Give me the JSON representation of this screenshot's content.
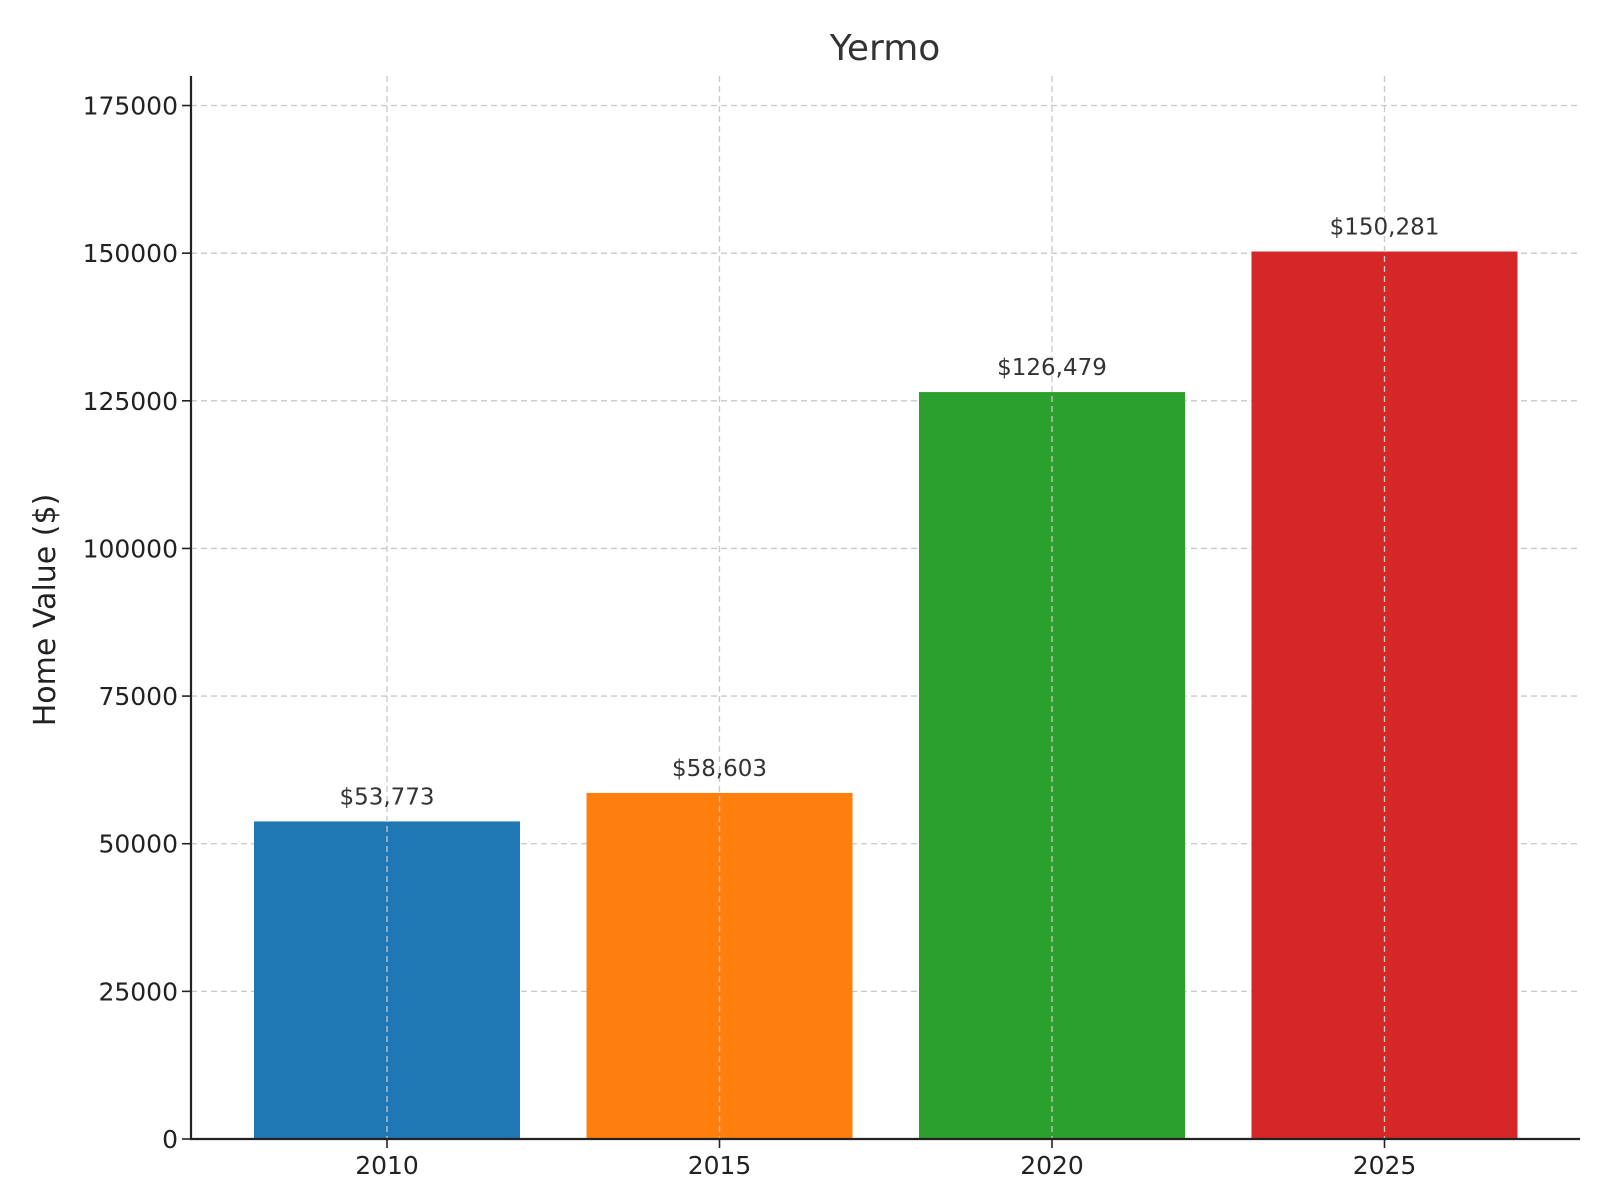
{
  "chart_data": {
    "type": "bar",
    "title": "Yermo",
    "xlabel": "",
    "ylabel": "Home Value ($)",
    "categories": [
      "2010",
      "2015",
      "2020",
      "2025"
    ],
    "values": [
      53773,
      58603,
      126479,
      150281
    ],
    "value_labels": [
      "$53,773",
      "$58,603",
      "$126,479",
      "$150,281"
    ],
    "colors": [
      "#1f77b4",
      "#ff7f0e",
      "#2ca02c",
      "#d62728"
    ],
    "yticks": [
      0,
      25000,
      50000,
      75000,
      100000,
      125000,
      150000,
      175000
    ],
    "ytick_labels": [
      "0",
      "25000",
      "50000",
      "75000",
      "100000",
      "125000",
      "150000",
      "175000"
    ],
    "ylim": [
      0,
      180000
    ],
    "grid": true
  }
}
